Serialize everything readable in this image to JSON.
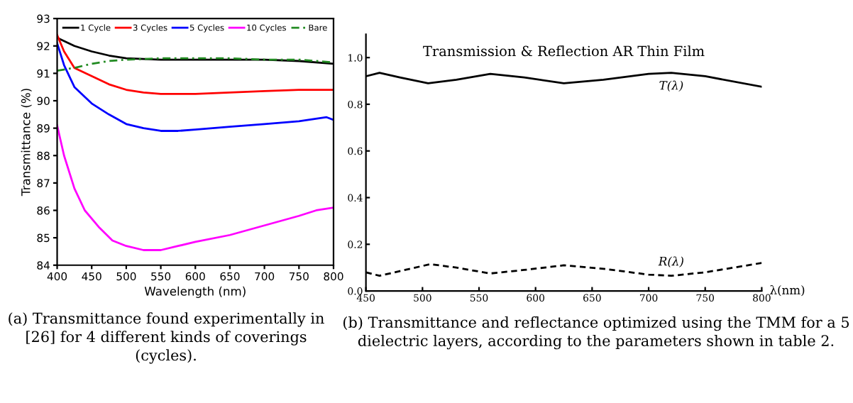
{
  "chart_data": [
    {
      "type": "line",
      "xlabel": "Wavelength (nm)",
      "ylabel": "Transmittance (%)",
      "xlim": [
        400,
        800
      ],
      "ylim": [
        84,
        93
      ],
      "xticks": [
        400,
        450,
        500,
        550,
        600,
        650,
        700,
        750,
        800
      ],
      "yticks": [
        84,
        85,
        86,
        87,
        88,
        89,
        90,
        91,
        92,
        93
      ],
      "legend": "top",
      "grid": false,
      "series": [
        {
          "name": "1 Cycle",
          "color": "#000000",
          "x": [
            400,
            425,
            450,
            475,
            500,
            550,
            600,
            650,
            700,
            750,
            800
          ],
          "values": [
            92.3,
            92.0,
            91.8,
            91.65,
            91.55,
            91.5,
            91.5,
            91.5,
            91.5,
            91.45,
            91.35
          ]
        },
        {
          "name": "3 Cycles",
          "color": "#ff0000",
          "x": [
            400,
            410,
            425,
            450,
            475,
            500,
            525,
            550,
            600,
            650,
            700,
            750,
            800
          ],
          "values": [
            92.4,
            91.8,
            91.2,
            90.9,
            90.6,
            90.4,
            90.3,
            90.25,
            90.25,
            90.3,
            90.35,
            90.4,
            90.4
          ]
        },
        {
          "name": "5 Cycles",
          "color": "#0000ff",
          "x": [
            400,
            410,
            425,
            450,
            475,
            500,
            525,
            550,
            575,
            600,
            650,
            700,
            750,
            790,
            800
          ],
          "values": [
            92.1,
            91.3,
            90.5,
            89.9,
            89.5,
            89.15,
            89.0,
            88.9,
            88.9,
            88.95,
            89.05,
            89.15,
            89.25,
            89.4,
            89.3
          ]
        },
        {
          "name": "10 Cycles",
          "color": "#ff00ff",
          "x": [
            400,
            410,
            425,
            440,
            460,
            480,
            500,
            525,
            550,
            575,
            600,
            650,
            700,
            750,
            775,
            800
          ],
          "values": [
            89.1,
            88.0,
            86.8,
            86.0,
            85.4,
            84.9,
            84.7,
            84.55,
            84.55,
            84.7,
            84.85,
            85.1,
            85.45,
            85.8,
            86.0,
            86.1
          ]
        },
        {
          "name": "Bare",
          "color": "#228b22",
          "line_style": "dashed",
          "x": [
            400,
            425,
            450,
            475,
            500,
            550,
            600,
            650,
            700,
            750,
            800
          ],
          "values": [
            91.1,
            91.2,
            91.35,
            91.45,
            91.5,
            91.55,
            91.55,
            91.55,
            91.5,
            91.5,
            91.4
          ]
        }
      ],
      "annotations": [
        "(a) Transmittance found experimentally in [26] for 4 different kinds of coverings (cycles)."
      ]
    },
    {
      "type": "line",
      "title": "Transmission & Reflection AR Thin Film",
      "xlabel": "λ(nm)",
      "xlim": [
        450,
        800
      ],
      "ylim": [
        0,
        1.1
      ],
      "xticks": [
        450,
        500,
        550,
        600,
        650,
        700,
        750,
        800
      ],
      "yticks": [
        {
          "value": 0,
          "label": "0.0"
        },
        {
          "value": 0.2,
          "label": "0.2"
        },
        {
          "value": 0.4,
          "label": "0.4"
        },
        {
          "value": 0.6,
          "label": "0.6"
        },
        {
          "value": 0.8,
          "label": "0.8"
        },
        {
          "value": 1.0,
          "label": "1.0"
        }
      ],
      "grid": false,
      "series": [
        {
          "name": "T(λ)",
          "color": "#000000",
          "line_style": "solid",
          "x": [
            450,
            462,
            480,
            505,
            530,
            560,
            590,
            625,
            660,
            700,
            720,
            750,
            800
          ],
          "values": [
            0.92,
            0.935,
            0.915,
            0.89,
            0.905,
            0.93,
            0.915,
            0.89,
            0.905,
            0.93,
            0.935,
            0.92,
            0.875
          ]
        },
        {
          "name": "R(λ)",
          "color": "#000000",
          "line_style": "dashed",
          "x": [
            450,
            462,
            480,
            507,
            530,
            560,
            590,
            625,
            660,
            700,
            720,
            750,
            800
          ],
          "values": [
            0.08,
            0.065,
            0.085,
            0.115,
            0.1,
            0.075,
            0.09,
            0.11,
            0.095,
            0.07,
            0.065,
            0.08,
            0.12
          ]
        }
      ],
      "annotations": [
        "(b) Transmittance and reflectance optimized using the TMM for a 5 dielectric layers, according to the parameters shown in table 2."
      ]
    }
  ]
}
